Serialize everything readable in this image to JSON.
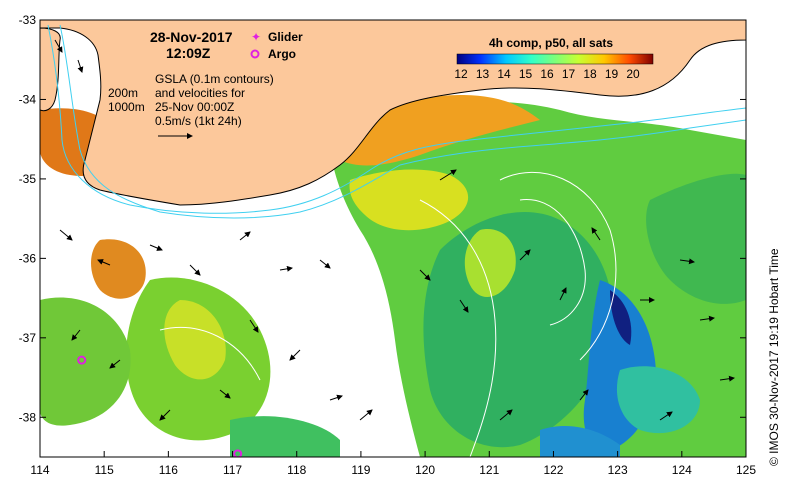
{
  "title": {
    "date": "28-Nov-2017",
    "time": "12:09Z"
  },
  "legend": {
    "glider": "Glider",
    "argo": "Argo",
    "glider_color": "#e020e0",
    "argo_color": "#e020e0"
  },
  "bathymetry": {
    "label_200": "200m",
    "label_1000": "1000m"
  },
  "gsla_note": {
    "line1": "GSLA (0.1m contours)",
    "line2": "and velocities for",
    "line3": "25-Nov 00:00Z",
    "line4": "0.5m/s (1kt 24h)"
  },
  "colorbar": {
    "title": "4h comp, p50, all sats",
    "ticks": [
      "12",
      "13",
      "14",
      "15",
      "16",
      "17",
      "18",
      "19",
      "20"
    ],
    "colors": [
      "#00007f",
      "#0032ff",
      "#00c8ff",
      "#32ffc8",
      "#7dff7a",
      "#c8ff32",
      "#ffc800",
      "#ff4b00",
      "#7f0000"
    ]
  },
  "axes": {
    "lon_ticks": [
      "114",
      "115",
      "116",
      "117",
      "118",
      "119",
      "120",
      "121",
      "122",
      "123",
      "124",
      "125"
    ],
    "lat_ticks": [
      "-33",
      "-34",
      "-35",
      "-36",
      "-37",
      "-38"
    ]
  },
  "credit": "© IMOS 30-Nov-2017 19:19 Hobart Time",
  "argo_floats": [
    {
      "name": "argo-float-1",
      "lon": 114.65,
      "lat": -37.28
    },
    {
      "name": "argo-float-2",
      "lon": 117.08,
      "lat": -38.46
    }
  ],
  "colors": {
    "land": "#fcc89b",
    "coast": "#000000",
    "bathy": "#40d0f0",
    "sla_contour": "#ffffff"
  }
}
